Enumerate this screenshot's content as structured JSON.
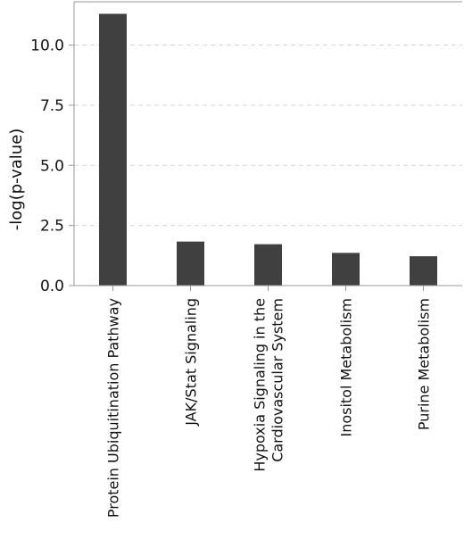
{
  "chart_data": {
    "type": "bar",
    "ylabel": "-log(p-value)",
    "xlabel": "",
    "ylim": [
      0,
      11.8
    ],
    "yticks": [
      "0.0",
      "2.5",
      "5.0",
      "7.5",
      "10.0"
    ],
    "ytick_values": [
      0,
      2.5,
      5,
      7.5,
      10
    ],
    "grid": "horizontal dashed",
    "bar_color": "#404040",
    "categories": [
      [
        "Protein Ubiquitination Pathway"
      ],
      [
        "JAK/Stat Signaling"
      ],
      [
        "Hypoxia Signaling in the",
        "Cardiovascular System"
      ],
      [
        "Inositol Metabolism"
      ],
      [
        "Purine Metabolism"
      ]
    ],
    "values": [
      11.3,
      1.83,
      1.72,
      1.36,
      1.22
    ]
  }
}
